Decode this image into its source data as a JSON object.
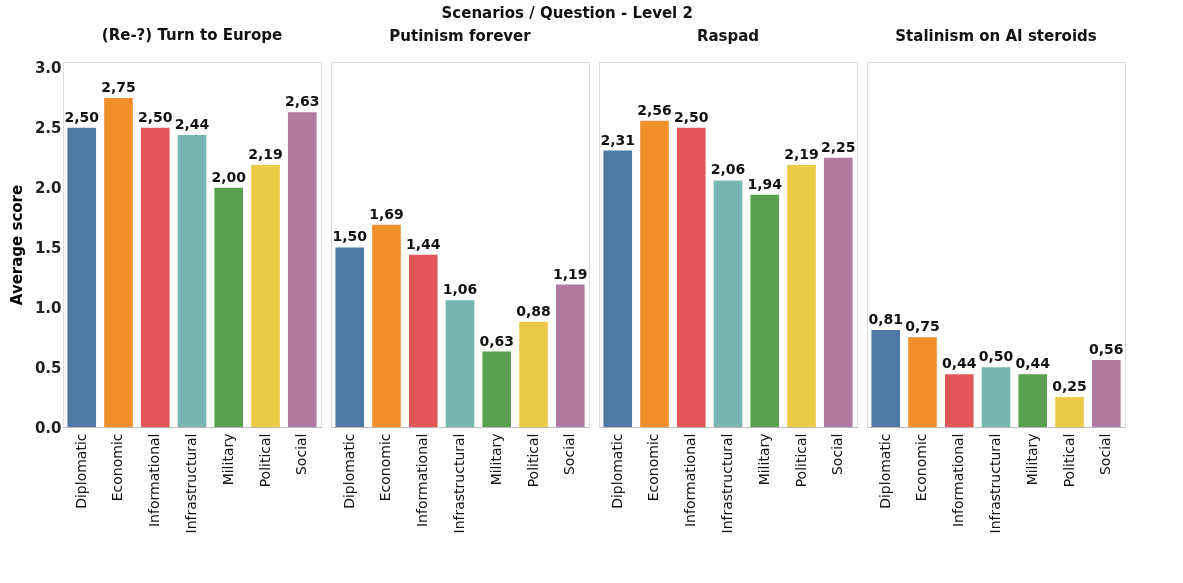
{
  "chart_data": [
    {
      "type": "bar",
      "title": "(Re-?) Turn to Europe",
      "annotations": [
        "Scenarios  /  Question - Level 2"
      ],
      "ylabel": "Average score",
      "categories": [
        "Diplomatic",
        "Economic",
        "Informational",
        "Infrastructural",
        "Military",
        "Political",
        "Social"
      ],
      "values": [
        2.5,
        2.75,
        2.5,
        2.44,
        2.0,
        2.19,
        2.63
      ],
      "value_labels": [
        "2,50",
        "2,75",
        "2,50",
        "2,44",
        "2,00",
        "2,19",
        "2,63"
      ],
      "colors": [
        "#4e79a7",
        "#f28e2b",
        "#e15759",
        "#76b7b2",
        "#59a14f",
        "#edc948",
        "#b07aa1"
      ],
      "ylim": [
        0,
        3.05
      ],
      "yticks": [
        {
          "value": 0,
          "label": "0.0"
        },
        {
          "value": 0.5,
          "label": "0.5"
        },
        {
          "value": 1,
          "label": "1.0"
        },
        {
          "value": 1.5,
          "label": "1.5"
        },
        {
          "value": 2,
          "label": "2.0"
        },
        {
          "value": 2.5,
          "label": "2.5"
        },
        {
          "value": 3,
          "label": "3.0"
        }
      ]
    },
    {
      "type": "bar",
      "title": "Putinism forever",
      "tick_labels": "x",
      "categories": [
        "Diplomatic",
        "Economic",
        "Informational",
        "Infrastructural",
        "Military",
        "Political",
        "Social"
      ],
      "values": [
        1.5,
        1.69,
        1.44,
        1.06,
        0.63,
        0.88,
        1.19
      ],
      "value_labels": [
        "1,50",
        "1,69",
        "1,44",
        "1,06",
        "0,63",
        "0,88",
        "1,19"
      ],
      "colors": [
        "#4e79a7",
        "#f28e2b",
        "#e15759",
        "#76b7b2",
        "#59a14f",
        "#edc948",
        "#b07aa1"
      ],
      "ylim": [
        0,
        3.05
      ]
    },
    {
      "type": "bar",
      "title": "Raspad",
      "tick_labels": "x",
      "categories": [
        "Diplomatic",
        "Economic",
        "Informational",
        "Infrastructural",
        "Military",
        "Political",
        "Social"
      ],
      "values": [
        2.31,
        2.56,
        2.5,
        2.06,
        1.94,
        2.19,
        2.25
      ],
      "value_labels": [
        "2,31",
        "2,56",
        "2,50",
        "2,06",
        "1,94",
        "2,19",
        "2,25"
      ],
      "colors": [
        "#4e79a7",
        "#f28e2b",
        "#e15759",
        "#76b7b2",
        "#59a14f",
        "#edc948",
        "#b07aa1"
      ],
      "ylim": [
        0,
        3.05
      ]
    },
    {
      "type": "bar",
      "title": "Stalinism on AI steroids",
      "tick_labels": "x",
      "categories": [
        "Diplomatic",
        "Economic",
        "Informational",
        "Infrastructural",
        "Military",
        "Political",
        "Social"
      ],
      "values": [
        0.81,
        0.75,
        0.44,
        0.5,
        0.44,
        0.25,
        0.56
      ],
      "value_labels": [
        "0,81",
        "0,75",
        "0,44",
        "0,50",
        "0,44",
        "0,25",
        "0,56"
      ],
      "colors": [
        "#4e79a7",
        "#f28e2b",
        "#e15759",
        "#76b7b2",
        "#59a14f",
        "#edc948",
        "#b07aa1"
      ],
      "ylim": [
        0,
        3.05
      ]
    }
  ]
}
